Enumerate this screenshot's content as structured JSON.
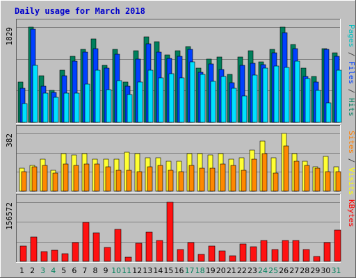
{
  "chart_data": {
    "type": "bar",
    "title": "Daily usage for March 2018",
    "title_color": "#0000cc",
    "background": "#c0c0c0",
    "grid": true,
    "categories": [
      "1",
      "2",
      "3",
      "4",
      "5",
      "6",
      "7",
      "8",
      "9",
      "10",
      "11",
      "12",
      "13",
      "14",
      "15",
      "16",
      "17",
      "18",
      "19",
      "20",
      "21",
      "22",
      "23",
      "24",
      "25",
      "26",
      "27",
      "28",
      "29",
      "30",
      "31"
    ],
    "weekend_days": [
      "3",
      "4",
      "10",
      "11",
      "17",
      "18",
      "24",
      "25",
      "31"
    ],
    "day_colors": {
      "weekday": "#000000",
      "weekend": "#00805c"
    },
    "panels": [
      {
        "id": "hits-files-pages",
        "max_label": "1829",
        "ymax": 1829,
        "right_label": [
          {
            "text": "Pages",
            "color": "#00c0c0"
          },
          {
            "text": " / ",
            "color": "#404040"
          },
          {
            "text": "Files",
            "color": "#0040ff"
          },
          {
            "text": " / ",
            "color": "#404040"
          },
          {
            "text": "Hits",
            "color": "#008060"
          }
        ],
        "series": [
          {
            "name": "Hits",
            "color": "#00805c",
            "values": [
              770,
              1829,
              890,
              620,
              1000,
              1270,
              1400,
              1600,
              1100,
              1400,
              780,
              1370,
              1640,
              1550,
              1300,
              1380,
              1460,
              1040,
              1220,
              1250,
              920,
              1260,
              1370,
              1160,
              1400,
              1829,
              1500,
              1040,
              880,
              1410,
              1330
            ]
          },
          {
            "name": "Files",
            "color": "#0040ff",
            "values": [
              650,
              1790,
              700,
              570,
              890,
              1170,
              1350,
              1420,
              1040,
              1310,
              690,
              1210,
              1510,
              1350,
              1230,
              1270,
              1400,
              960,
              1120,
              1020,
              760,
              1100,
              1140,
              1110,
              1330,
              1720,
              1410,
              880,
              770,
              1400,
              1270
            ]
          },
          {
            "name": "Pages",
            "color": "#00e0ff",
            "values": [
              360,
              1090,
              560,
              480,
              560,
              560,
              740,
              1000,
              630,
              800,
              540,
              780,
              1000,
              860,
              940,
              850,
              1160,
              920,
              790,
              880,
              650,
              510,
              910,
              1040,
              1080,
              1060,
              1180,
              840,
              620,
              380,
              1000
            ]
          }
        ]
      },
      {
        "id": "visits-sites",
        "max_label": "382",
        "ymax": 382,
        "right_label": [
          {
            "text": "Sites",
            "color": "#ff8000"
          },
          {
            "text": " / ",
            "color": "#404040"
          },
          {
            "text": "Visits",
            "color": "#ffff00"
          }
        ],
        "series": [
          {
            "name": "Visits",
            "color": "#ffff33",
            "values": [
              150,
              170,
              210,
              140,
              250,
              240,
              250,
              210,
              210,
              210,
              260,
              250,
              220,
              220,
              200,
              200,
              250,
              250,
              240,
              250,
              210,
              220,
              270,
              330,
              220,
              382,
              250,
              200,
              160,
              230,
              160
            ]
          },
          {
            "name": "Sites",
            "color": "#ff8800",
            "values": [
              130,
              160,
              170,
              120,
              180,
              170,
              180,
              180,
              160,
              140,
              140,
              130,
              160,
              170,
              140,
              130,
              170,
              150,
              150,
              180,
              170,
              140,
              210,
              250,
              120,
              300,
              200,
              170,
              150,
              130,
              130
            ]
          }
        ]
      },
      {
        "id": "kbytes",
        "max_label": "156572",
        "ymax": 156572,
        "right_label": [
          {
            "text": "KBytes",
            "color": "#ff0000"
          }
        ],
        "series": [
          {
            "name": "KBytes",
            "color": "#ff1111",
            "values": [
              40000,
              64000,
              25000,
              30000,
              20000,
              50000,
              103000,
              75000,
              37000,
              84000,
              11000,
              48000,
              78000,
              55000,
              156572,
              32000,
              50000,
              18000,
              40000,
              28000,
              14000,
              46000,
              38000,
              56000,
              32000,
              55000,
              55000,
              32000,
              13000,
              49000,
              83000
            ]
          }
        ]
      }
    ]
  }
}
